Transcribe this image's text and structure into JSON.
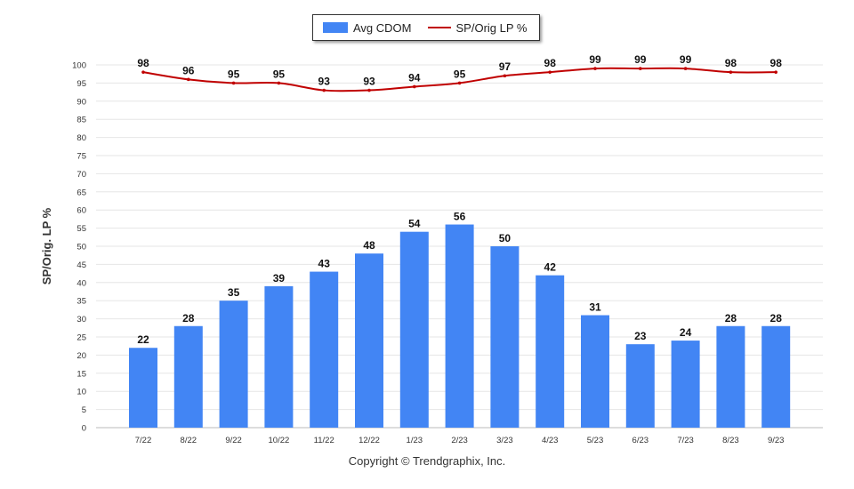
{
  "chart_data": {
    "type": "bar",
    "categories": [
      "7/22",
      "8/22",
      "9/22",
      "10/22",
      "11/22",
      "12/22",
      "1/23",
      "2/23",
      "3/23",
      "4/23",
      "5/23",
      "6/23",
      "7/23",
      "8/23",
      "9/23"
    ],
    "series": [
      {
        "name": "Avg CDOM",
        "type": "bar",
        "color": "#4285f4",
        "values": [
          22,
          28,
          35,
          39,
          43,
          48,
          54,
          56,
          50,
          42,
          31,
          23,
          24,
          28,
          28
        ]
      },
      {
        "name": "SP/Orig LP %",
        "type": "line",
        "color": "#c00000",
        "values": [
          98,
          96,
          95,
          95,
          93,
          93,
          94,
          95,
          97,
          98,
          99,
          99,
          99,
          98,
          98
        ]
      }
    ],
    "ylabel": "SP/Orig. LP %",
    "ylim": [
      0,
      100
    ],
    "yticks": [
      0,
      5,
      10,
      15,
      20,
      25,
      30,
      35,
      40,
      45,
      50,
      55,
      60,
      65,
      70,
      75,
      80,
      85,
      90,
      95,
      100
    ],
    "grid": true,
    "legend_position": "top-center"
  },
  "legend": {
    "bar_label": "Avg CDOM",
    "line_label": "SP/Orig LP %"
  },
  "footer": "Copyright © Trendgraphix, Inc."
}
